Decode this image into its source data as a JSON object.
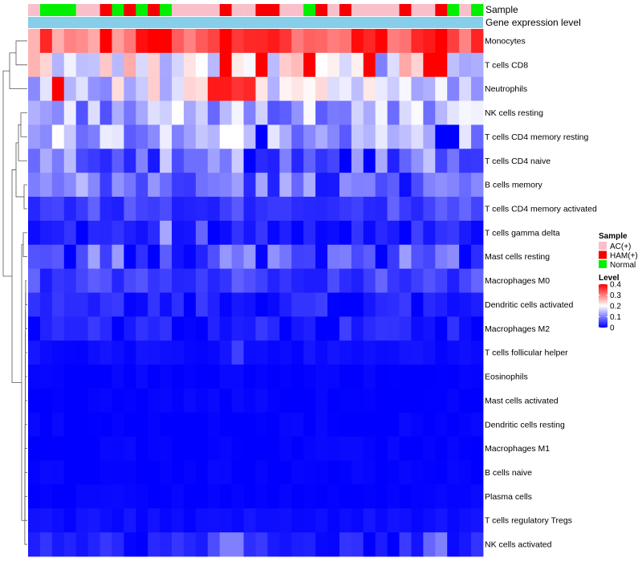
{
  "chart_data": {
    "type": "heatmap",
    "title": "",
    "annotations": {
      "sample_label": "Sample",
      "gene_label": "Gene expression level",
      "gene_color": "#87CEEB",
      "columns": [
        "AC(+)",
        "Normal",
        "Normal",
        "Normal",
        "AC(+)",
        "AC(+)",
        "HAM(+)",
        "Normal",
        "HAM(+)",
        "Normal",
        "HAM(+)",
        "Normal",
        "AC(+)",
        "AC(+)",
        "AC(+)",
        "AC(+)",
        "HAM(+)",
        "AC(+)",
        "AC(+)",
        "HAM(+)",
        "HAM(+)",
        "AC(+)",
        "AC(+)",
        "Normal",
        "HAM(+)",
        "AC(+)",
        "HAM(+)",
        "AC(+)",
        "AC(+)",
        "AC(+)",
        "AC(+)",
        "HAM(+)",
        "AC(+)",
        "AC(+)",
        "HAM(+)",
        "Normal",
        "AC(+)",
        "Normal"
      ]
    },
    "rows": [
      "Monocytes",
      "T cells CD8",
      "Neutrophils",
      "NK cells resting",
      "T cells CD4 memory resting",
      "T cells CD4 naive",
      "B cells memory",
      "T cells CD4 memory activated",
      "T cells gamma delta",
      "Mast cells resting",
      "Macrophages M0",
      "Dendritic cells activated",
      "Macrophages M2",
      "T cells follicular helper",
      "Eosinophils",
      "Mast cells activated",
      "Dendritic cells resting",
      "Macrophages M1",
      "B cells naive",
      "Plasma cells",
      "T cells regulatory  Tregs",
      "NK cells activated"
    ],
    "row_baselines": [
      0.33,
      0.2,
      0.17,
      0.13,
      0.14,
      0.09,
      0.08,
      0.05,
      0.02,
      0.06,
      0.05,
      0.02,
      0.02,
      0.01,
      0,
      0,
      0,
      0,
      0,
      0,
      0.01,
      0.02
    ],
    "cells_overrides": {
      "0": {
        "1": 0.37,
        "6": 0.4,
        "10": 0.4,
        "11": 0.4,
        "16": 0.4,
        "19": 0.37,
        "20": 0.38,
        "28": 0.37,
        "33": 0.38,
        "34": 0.4
      },
      "1": {
        "2": 0.14,
        "4": 0.15,
        "16": 0.4,
        "19": 0.4,
        "23": 0.4,
        "28": 0.4,
        "29": 0.1,
        "33": 0.4,
        "34": 0.4,
        "35": 0.15,
        "36": 0.13
      },
      "2": {
        "2": 0.4,
        "15": 0.38,
        "16": 0.38,
        "17": 0.36,
        "18": 0.37,
        "22": 0.22,
        "30": 0.16
      },
      "4": {
        "16": 0.2,
        "17": 0.2,
        "19": 0,
        "26": 0.07,
        "34": 0,
        "35": 0
      },
      "5": {
        "10": 0.02,
        "18": 0,
        "26": 0,
        "28": 0
      },
      "8": {
        "11": 0.13,
        "14": 0.08,
        "17": 0.04,
        "32": 0.05
      },
      "9": {
        "17": 0.09
      },
      "13": {
        "17": 0.05
      },
      "21": {
        "15": 0.06,
        "16": 0.1,
        "17": 0.1,
        "33": 0.08,
        "34": 0.1
      }
    },
    "legend": {
      "sample_title": "Sample",
      "sample_entries": [
        {
          "label": "AC(+)",
          "color": "#F9C0CB"
        },
        {
          "label": "HAM(+)",
          "color": "#F80000"
        },
        {
          "label": "Normal",
          "color": "#00F000"
        }
      ],
      "level_title": "Level",
      "level_ticks": [
        "0.4",
        "0.3",
        "0.2",
        "0.1",
        "0"
      ],
      "level_values": [
        0.4,
        0.3,
        0.2,
        0.1,
        0
      ],
      "scale_min": 0,
      "scale_mid": 0.2,
      "scale_max": 0.4,
      "color_low": "#0000FF",
      "color_mid": "#FFFFFF",
      "color_high": "#FF0000"
    }
  }
}
